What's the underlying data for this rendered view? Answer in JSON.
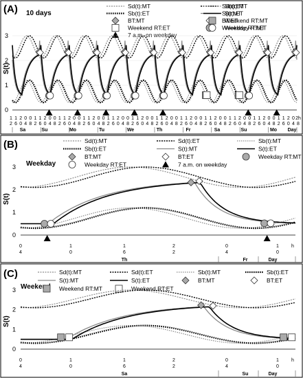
{
  "figure": {
    "panels": [
      {
        "id": "A",
        "label": "(A)",
        "subtitle": "10 days",
        "legend": [
          [
            "Sd(t):MT",
            "Sd(t):ET",
            "Sb(t):MT"
          ],
          [
            "Sb(t):ET",
            "S(t):MT",
            "S(t):ET"
          ],
          [
            "BT:MT",
            "BT:ET",
            "Weekend RT:MT"
          ],
          [
            "Weekend RT:ET",
            "Weekday RT:MT",
            "Weekday RT:ET"
          ],
          [
            "7 a.m. on weekday"
          ]
        ]
      },
      {
        "id": "B",
        "label": "(B)",
        "subtitle": "Weekday",
        "legend": [
          [
            "Sd(t):MT",
            "Sd(t):ET",
            "Sb(t):MT"
          ],
          [
            "Sb(t):ET",
            "S(t):MT",
            "S(t):ET"
          ],
          [
            "BT:MT",
            "BT:ET",
            "Weekday RT:MT"
          ],
          [
            "Weekday RT:ET",
            "7 a.m. on weekday"
          ]
        ]
      },
      {
        "id": "C",
        "label": "(C)",
        "subtitle": "Weekend",
        "legend": [
          [
            "Sd(t):MT",
            "Sd(t):ET",
            "Sb(t):MT",
            "Sb(t):ET"
          ],
          [
            "S(t):MT",
            "S(t):ET",
            "BT:MT",
            "BT:ET"
          ],
          [
            "Weekend RT:MT",
            "Weekend RT:ET"
          ]
        ]
      }
    ]
  },
  "chart_data": [
    {
      "type": "line",
      "panel": "A",
      "ylabel": "S(t)",
      "ylim": [
        0,
        3
      ],
      "yticks": [
        "0",
        "1",
        "2",
        "3"
      ],
      "xticks_top": [
        "1",
        "1",
        "2",
        "0",
        "0",
        "1",
        "1",
        "2",
        "0",
        "0",
        "1",
        "1",
        "2",
        "0",
        "0",
        "1",
        "1",
        "2",
        "0",
        "0",
        "1",
        "1",
        "2",
        "0",
        "0",
        "1",
        "1",
        "2",
        "0",
        "0",
        "1",
        "1",
        "2",
        "0",
        "0",
        "1",
        "1",
        "2",
        "0",
        "0",
        "1",
        "1",
        "2",
        "0",
        "0",
        "1",
        "1",
        "2",
        "0",
        "0",
        "1",
        "1",
        "2",
        "0",
        "0",
        "1",
        "1",
        "2",
        "0",
        "2h"
      ],
      "xticks_bottom": [
        "2",
        "6",
        "0",
        "4",
        "8",
        "2",
        "6",
        "0",
        "4",
        "8",
        "2",
        "6",
        "0",
        "4",
        "8",
        "2",
        "6",
        "0",
        "4",
        "8",
        "2",
        "6",
        "0",
        "4",
        "8",
        "2",
        "6",
        "0",
        "4",
        "8",
        "2",
        "6",
        "0",
        "4",
        "8",
        "2",
        "6",
        "0",
        "4",
        "8",
        "2",
        "6",
        "0",
        "4",
        "8",
        "2",
        "6",
        "0",
        "4",
        "8",
        "2",
        "6",
        "0",
        "4",
        "8",
        "2",
        "6",
        "0",
        "4",
        "8"
      ],
      "day_labels": [
        "Sa",
        "Su",
        "Mo",
        "Tu",
        "We",
        "Th",
        "Fr",
        "Sa",
        "Su",
        "Mo",
        "Day"
      ],
      "weekday_7am_markers": 7,
      "weekend_rt_markers": 2,
      "weekday_rt_markers": 7,
      "bt_markers": 9,
      "series": [
        {
          "name": "Sd(t):MT"
        },
        {
          "name": "Sd(t):ET"
        },
        {
          "name": "Sb(t):MT"
        },
        {
          "name": "Sb(t):ET"
        },
        {
          "name": "S(t):MT"
        },
        {
          "name": "S(t):ET"
        }
      ]
    },
    {
      "type": "line",
      "panel": "B",
      "ylabel": "S(t)",
      "ylim": [
        0,
        3
      ],
      "yticks": [
        "0",
        "1",
        "2",
        "3"
      ],
      "xticks_top": [
        "0",
        "1",
        "1",
        "2",
        "0",
        "1",
        "h"
      ],
      "xticks_bottom": [
        "4",
        "0",
        "6",
        "2",
        "4",
        "0",
        ""
      ],
      "day_labels": [
        "Th",
        "Fr",
        "Day"
      ],
      "series": [
        {
          "name": "Sd(t):MT"
        },
        {
          "name": "Sd(t):ET"
        },
        {
          "name": "Sb(t):MT"
        },
        {
          "name": "Sb(t):ET"
        },
        {
          "name": "S(t):MT"
        },
        {
          "name": "S(t):ET"
        }
      ]
    },
    {
      "type": "line",
      "panel": "C",
      "ylabel": "S(t)",
      "ylim": [
        0,
        3
      ],
      "yticks": [
        "0",
        "1",
        "2",
        "3"
      ],
      "xticks_top": [
        "0",
        "1",
        "1",
        "2",
        "0",
        "1",
        "h"
      ],
      "xticks_bottom": [
        "4",
        "0",
        "6",
        "2",
        "4",
        "0",
        ""
      ],
      "day_labels": [
        "Sa",
        "Su",
        "Day"
      ],
      "series": [
        {
          "name": "Sd(t):MT"
        },
        {
          "name": "Sd(t):ET"
        },
        {
          "name": "Sb(t):MT"
        },
        {
          "name": "Sb(t):ET"
        },
        {
          "name": "S(t):MT"
        },
        {
          "name": "S(t):ET"
        }
      ]
    }
  ]
}
